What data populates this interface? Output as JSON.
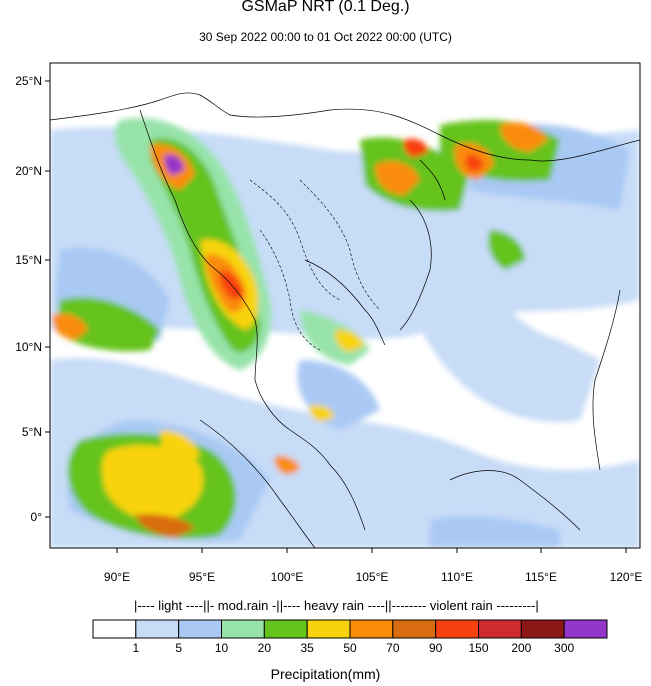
{
  "title": "GSMaP NRT (0.1 Deg.)",
  "subtitle": "30 Sep 2022 00:00 to 01 Oct 2022 00:00 (UTC)",
  "units_label": "Precipitation(mm)",
  "lat_labels": [
    "25°N",
    "20°N",
    "15°N",
    "10°N",
    "5°N",
    "0°"
  ],
  "lon_labels": [
    "90°E",
    "95°E",
    "100°E",
    "105°E",
    "110°E",
    "115°E",
    "120°E"
  ],
  "category_legend": [
    "|---- light ----|",
    "|- mod.rain -|",
    "|---- heavy rain ----|",
    "|-------- violent rain ---------|"
  ],
  "colorbar": {
    "colors": [
      "#ffffff",
      "#c7dcf7",
      "#a9c9f4",
      "#97e3aa",
      "#65c31c",
      "#f8d30d",
      "#fa8c0b",
      "#d96c11",
      "#f7410f",
      "#cf2b2f",
      "#8c1818",
      "#9435cb"
    ],
    "ticks": [
      "1",
      "5",
      "10",
      "20",
      "35",
      "50",
      "70",
      "90",
      "150",
      "200",
      "300"
    ]
  }
}
